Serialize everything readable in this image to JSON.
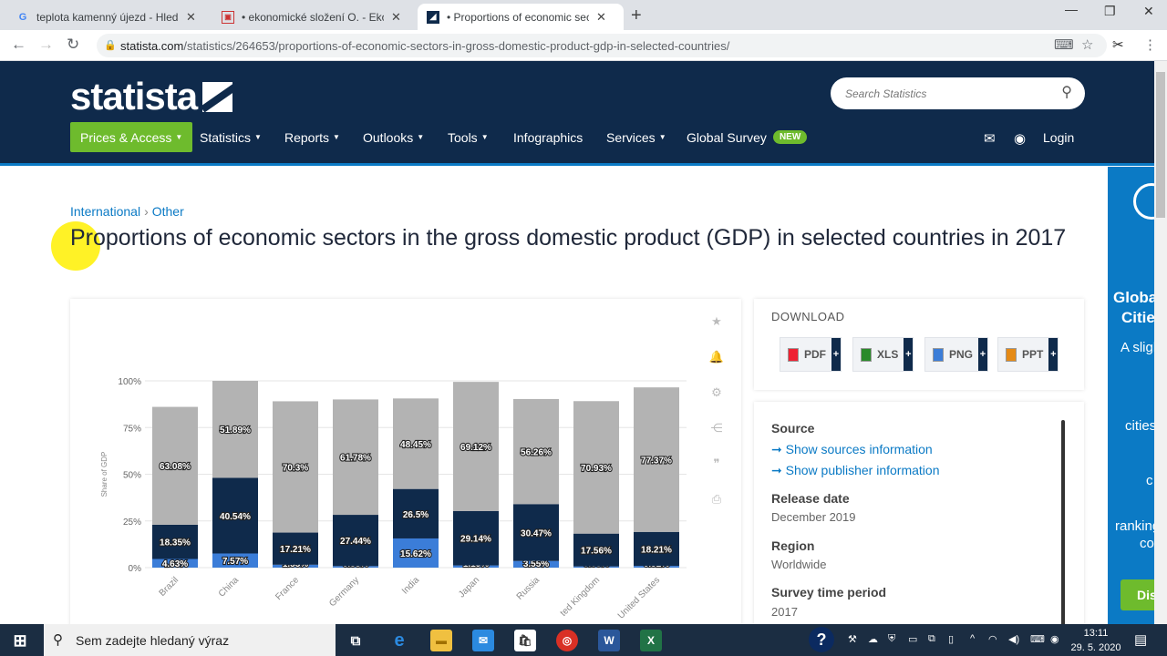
{
  "browser": {
    "tabs": [
      {
        "title": "teplota kamenný újezd - Hledat G",
        "favicon": "google-icon"
      },
      {
        "title": "• ekonomické složení O. - Ekonor",
        "favicon": "page-icon"
      },
      {
        "title": "• Proportions of economic sector",
        "favicon": "statista-icon"
      }
    ],
    "url_host": "statista.com",
    "url_path": "/statistics/264653/proportions-of-economic-sectors-in-gross-domestic-product-gdp-in-selected-countries/"
  },
  "header": {
    "logo": "statista",
    "search_placeholder": "Search Statistics",
    "nav": [
      "Prices & Access",
      "Statistics",
      "Reports",
      "Outlooks",
      "Tools",
      "Infographics",
      "Services",
      "Global Survey"
    ],
    "new_badge": "NEW",
    "login": "Login"
  },
  "breadcrumb": [
    "International",
    "Other"
  ],
  "page_title": "Proportions of economic sectors in the gross domestic product (GDP) in selected countries in 2017",
  "chart_data": {
    "type": "bar",
    "stacked": true,
    "categories": [
      "Brazil",
      "China",
      "France",
      "Germany",
      "India",
      "Japan",
      "Russia",
      "United Kingdom",
      "United States"
    ],
    "category_labels_visible": [
      "Brazil",
      "China",
      "France",
      "Germany",
      "India",
      "Japan",
      "Russia",
      "ted Kingdom",
      "United States"
    ],
    "ylabel": "Share of GDP",
    "ylim": [
      0,
      100
    ],
    "yticks": [
      "0%",
      "25%",
      "50%",
      "75%",
      "100%"
    ],
    "series": [
      {
        "values": [
          4.63,
          7.57,
          1.55,
          0.83,
          15.62,
          1.19,
          3.55,
          0.65,
          0.92
        ],
        "labels": [
          "4.63%",
          "7.57%",
          "1.55%",
          "0.83%",
          "15.62%",
          "1.19%",
          "3.55%",
          "0.65%",
          "0.92%"
        ],
        "color": "#3b7dd8"
      },
      {
        "values": [
          18.35,
          40.54,
          17.21,
          27.44,
          26.5,
          29.14,
          30.47,
          17.56,
          18.21
        ],
        "labels": [
          "18.35%",
          "40.54%",
          "17.21%",
          "27.44%",
          "26.5%",
          "29.14%",
          "30.47%",
          "17.56%",
          "18.21%"
        ],
        "color": "#0f2a4b"
      },
      {
        "values": [
          63.08,
          51.89,
          70.3,
          61.78,
          48.45,
          69.12,
          56.26,
          70.93,
          77.37
        ],
        "labels": [
          "63.08%",
          "51.89%",
          "70.3%",
          "61.78%",
          "48.45%",
          "69.12%",
          "56.26%",
          "70.93%",
          "77.37%"
        ],
        "color": "#b3b3b3"
      }
    ],
    "grid": true
  },
  "download": {
    "title": "DOWNLOAD",
    "buttons": [
      "PDF",
      "XLS",
      "PNG",
      "PPT"
    ]
  },
  "info": {
    "source_label": "Source",
    "source_link": "➞ Show sources information",
    "publisher_link": "➞ Show publisher information",
    "release_label": "Release date",
    "release_value": "December 2019",
    "region_label": "Region",
    "region_value": "Worldwide",
    "period_label": "Survey time period",
    "period_value": "2017"
  },
  "ad_panel": {
    "lines": [
      "Globa",
      "Citie",
      "A sligl",
      "cities",
      "c",
      "ranking",
      "co"
    ],
    "button": "Dis"
  },
  "taskbar": {
    "search_placeholder": "Sem zadejte hledaný výraz",
    "time": "13:11",
    "date": "29. 5. 2020"
  }
}
